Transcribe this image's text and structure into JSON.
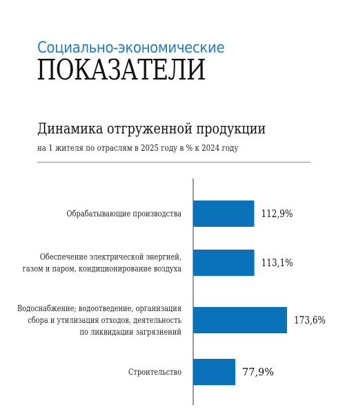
{
  "header": {
    "kicker": "Социально-экономические",
    "headline": "ПОКАЗАТЕЛИ"
  },
  "chart_data": {
    "type": "bar",
    "orientation": "horizontal",
    "title": "Динамика отгруженной продукции",
    "subtitle": "на 1 жителя по отраслям в 2025 году в % к 2024 году",
    "categories": [
      [
        "Обрабатывающие производства"
      ],
      [
        "Обеспечение электрической энергией,",
        "газом и паром, кондиционирование воздуха"
      ],
      [
        "Водоснабжение; водоотведение, организация",
        "сбора и утилизация отходов, деятельность",
        "по ликвидации загрязнений"
      ],
      [
        "Строительство"
      ]
    ],
    "values": [
      112.9,
      113.1,
      173.6,
      77.9
    ],
    "value_labels": [
      "112,9%",
      "113,1%",
      "173,6%",
      "77,9%"
    ],
    "xlim": [
      0,
      200
    ],
    "bar_color": "#0b72b9",
    "grid": false,
    "legend": "none"
  }
}
